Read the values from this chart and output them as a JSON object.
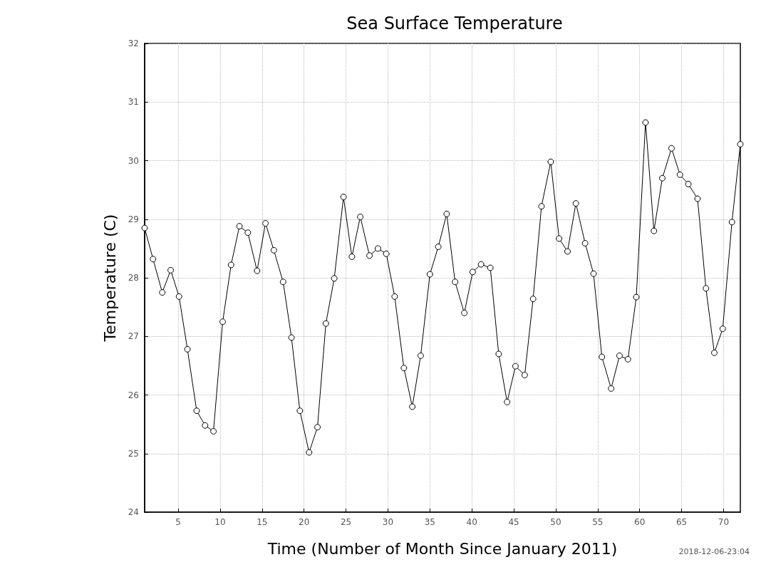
{
  "chart_data": {
    "type": "line",
    "title": "Sea Surface Temperature",
    "xlabel": "Time (Number of Month Since January 2011)",
    "ylabel": "Temperature (C)",
    "annotations": [
      "2018-12-06-23:04"
    ],
    "x": [
      1.0,
      2.0,
      3.1,
      4.1,
      5.1,
      6.1,
      7.2,
      8.2,
      9.2,
      10.3,
      11.3,
      12.3,
      13.3,
      14.4,
      15.4,
      16.4,
      17.5,
      18.5,
      19.5,
      20.6,
      21.6,
      22.6,
      23.6,
      24.7,
      25.7,
      26.7,
      27.8,
      28.8,
      29.8,
      30.8,
      31.9,
      32.9,
      33.9,
      35.0,
      36.0,
      37.0,
      38.0,
      39.1,
      40.1,
      41.1,
      42.2,
      43.2,
      44.2,
      45.2,
      46.3,
      47.3,
      48.3,
      49.4,
      50.4,
      51.4,
      52.4,
      53.5,
      54.5,
      55.5,
      56.6,
      57.6,
      58.6,
      59.6,
      60.7,
      61.7,
      62.7,
      63.8,
      64.8,
      65.8,
      66.9,
      67.9,
      68.9,
      69.9,
      71.0,
      72.0
    ],
    "series": [
      {
        "color": "#000000",
        "values": [
          28.85,
          28.32,
          27.75,
          28.13,
          27.68,
          26.78,
          25.73,
          25.48,
          25.38,
          27.25,
          28.22,
          28.88,
          28.77,
          28.12,
          28.93,
          28.47,
          27.93,
          26.98,
          25.73,
          25.02,
          25.45,
          27.22,
          27.99,
          29.38,
          28.36,
          29.04,
          28.38,
          28.5,
          28.41,
          27.68,
          26.46,
          25.8,
          26.67,
          28.06,
          28.53,
          29.09,
          27.93,
          27.4,
          28.1,
          28.23,
          28.17,
          26.7,
          25.88,
          26.49,
          26.34,
          27.64,
          29.22,
          29.98,
          28.67,
          28.45,
          29.27,
          28.59,
          28.07,
          26.65,
          26.11,
          26.67,
          26.61,
          27.67,
          30.65,
          28.8,
          29.7,
          30.21,
          29.76,
          29.6,
          29.35,
          27.82,
          26.72,
          27.13,
          28.95,
          30.28
        ]
      }
    ],
    "xlim": [
      1,
      72
    ],
    "xticks": [
      5,
      10,
      15,
      20,
      25,
      30,
      35,
      40,
      45,
      50,
      55,
      60,
      65,
      70
    ],
    "ylim": [
      24,
      32
    ],
    "yticks": [
      24,
      25,
      26,
      27,
      28,
      29,
      30,
      31,
      32
    ],
    "grid": true,
    "marker": "circle",
    "line_style": "solid"
  }
}
